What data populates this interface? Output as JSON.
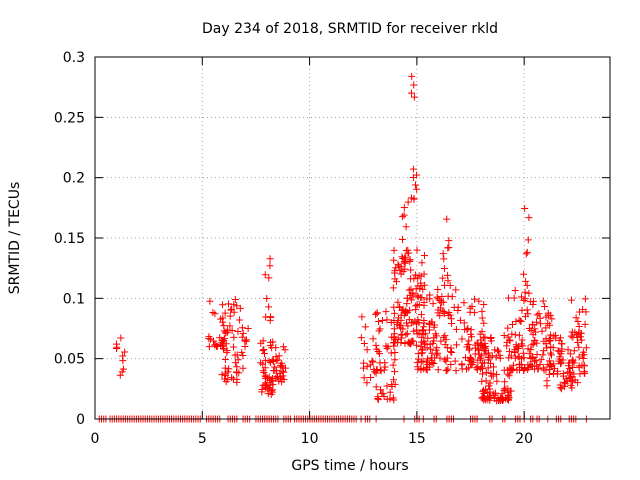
{
  "chart_data": {
    "type": "scatter",
    "title": "Day 234 of 2018, SRMTID for receiver rkld",
    "xlabel": "GPS time / hours",
    "ylabel": "SRMTID / TECUs",
    "xlim": [
      0,
      24
    ],
    "ylim": [
      0,
      0.3
    ],
    "xticks": [
      0,
      5,
      10,
      15,
      20
    ],
    "xtick_labels": [
      "0",
      "5",
      "10",
      "15",
      "20"
    ],
    "yticks": [
      0,
      0.05,
      0.1,
      0.15,
      0.2,
      0.25,
      0.3
    ],
    "ytick_labels": [
      "0",
      "0.05",
      "0.1",
      "0.15",
      "0.2",
      "0.25",
      "0.3"
    ],
    "grid": true,
    "marker": "+",
    "series": [
      {
        "name": "SRMTID",
        "color": "#ff0000",
        "clusters": [
          {
            "x": [
              1.0,
              1.4
            ],
            "y": [
              0.035,
              0.07
            ],
            "n": 10
          },
          {
            "x": [
              5.3,
              6.1
            ],
            "y": [
              0.06,
              0.1
            ],
            "n": 25
          },
          {
            "x": [
              5.9,
              6.9
            ],
            "y": [
              0.03,
              0.1
            ],
            "n": 55
          },
          {
            "x": [
              6.9,
              7.2
            ],
            "y": [
              0.06,
              0.08
            ],
            "n": 6
          },
          {
            "x": [
              7.7,
              8.3
            ],
            "y": [
              0.02,
              0.065
            ],
            "n": 45
          },
          {
            "x": [
              7.9,
              8.2
            ],
            "y": [
              0.08,
              0.135
            ],
            "n": 10
          },
          {
            "x": [
              8.3,
              8.9
            ],
            "y": [
              0.03,
              0.06
            ],
            "n": 30
          },
          {
            "x": [
              12.4,
              13.1
            ],
            "y": [
              0.03,
              0.085
            ],
            "n": 15
          },
          {
            "x": [
              12.9,
              14.0
            ],
            "y": [
              0.015,
              0.09
            ],
            "n": 55
          },
          {
            "x": [
              13.9,
              15.4
            ],
            "y": [
              0.06,
              0.14
            ],
            "n": 120
          },
          {
            "x": [
              14.2,
              14.7
            ],
            "y": [
              0.12,
              0.18
            ],
            "n": 20
          },
          {
            "x": [
              14.7,
              15.0
            ],
            "y": [
              0.18,
              0.29
            ],
            "n": 12
          },
          {
            "x": [
              15.0,
              17.0
            ],
            "y": [
              0.04,
              0.11
            ],
            "n": 110
          },
          {
            "x": [
              16.2,
              16.6
            ],
            "y": [
              0.11,
              0.17
            ],
            "n": 12
          },
          {
            "x": [
              17.0,
              18.2
            ],
            "y": [
              0.04,
              0.1
            ],
            "n": 70
          },
          {
            "x": [
              18.0,
              19.4
            ],
            "y": [
              0.015,
              0.07
            ],
            "n": 100
          },
          {
            "x": [
              19.2,
              20.2
            ],
            "y": [
              0.04,
              0.11
            ],
            "n": 60
          },
          {
            "x": [
              19.9,
              20.3
            ],
            "y": [
              0.1,
              0.185
            ],
            "n": 10
          },
          {
            "x": [
              20.2,
              21.5
            ],
            "y": [
              0.04,
              0.1
            ],
            "n": 70
          },
          {
            "x": [
              21.0,
              22.3
            ],
            "y": [
              0.025,
              0.07
            ],
            "n": 60
          },
          {
            "x": [
              22.2,
              22.9
            ],
            "y": [
              0.03,
              0.1
            ],
            "n": 45
          }
        ],
        "zero_segments": [
          [
            0.2,
            0.6
          ],
          [
            0.7,
            5.0
          ],
          [
            5.2,
            5.9
          ],
          [
            6.2,
            6.7
          ],
          [
            6.9,
            7.3
          ],
          [
            7.5,
            8.6
          ],
          [
            8.8,
            9.2
          ],
          [
            9.3,
            12.2
          ],
          [
            12.4,
            12.5
          ],
          [
            12.6,
            12.9
          ],
          [
            13.1,
            13.2
          ],
          [
            14.4,
            14.5
          ],
          [
            14.9,
            15.2
          ],
          [
            15.3,
            15.4
          ],
          [
            15.8,
            16.0
          ],
          [
            16.4,
            16.8
          ],
          [
            17.5,
            17.9
          ],
          [
            18.4,
            18.6
          ],
          [
            19.0,
            19.2
          ],
          [
            19.6,
            19.9
          ],
          [
            20.0,
            20.1
          ],
          [
            20.3,
            20.5
          ],
          [
            20.6,
            20.8
          ],
          [
            21.1,
            21.2
          ],
          [
            21.5,
            21.8
          ],
          [
            22.1,
            22.5
          ],
          [
            22.9,
            23.0
          ]
        ]
      }
    ]
  }
}
